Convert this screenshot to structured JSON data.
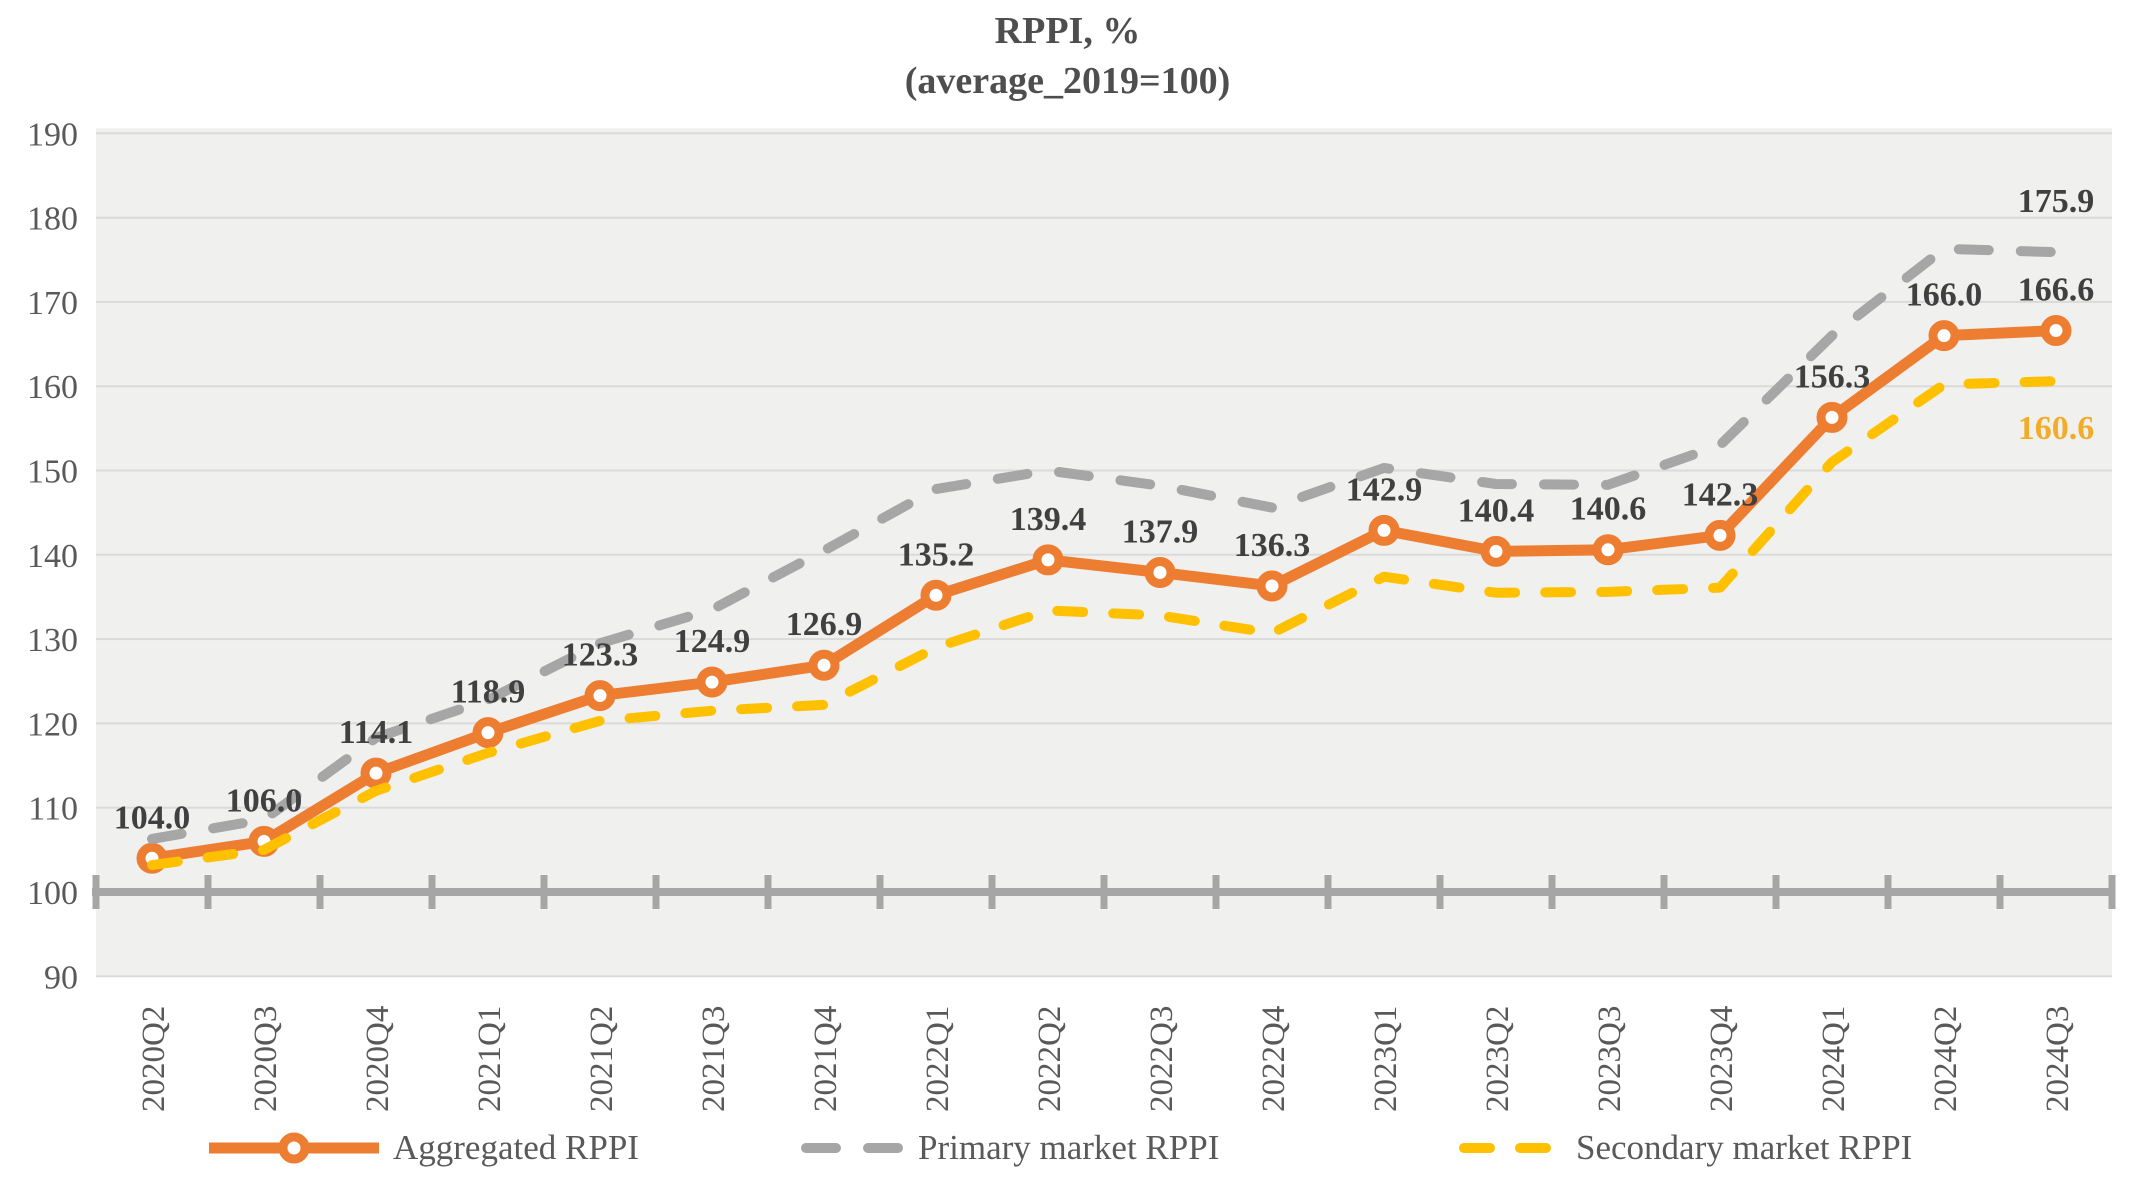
{
  "title": {
    "line1": "RPPI, %",
    "line2": "(average_2019=100)"
  },
  "chart_data": {
    "type": "line",
    "categories": [
      "2020Q2",
      "2020Q3",
      "2020Q4",
      "2021Q1",
      "2021Q2",
      "2021Q3",
      "2021Q4",
      "2022Q1",
      "2022Q2",
      "2022Q3",
      "2022Q4",
      "2023Q1",
      "2023Q2",
      "2023Q3",
      "2023Q4",
      "2024Q1",
      "2024Q2",
      "2024Q3"
    ],
    "series": [
      {
        "name": "Aggregated RPPI",
        "color": "#ED7D31",
        "style": "solid",
        "marker": "circle",
        "label_points": "all",
        "label_color": "#404040",
        "values": [
          104.0,
          106.0,
          114.1,
          118.9,
          123.3,
          124.9,
          126.9,
          135.2,
          139.4,
          137.9,
          136.3,
          142.9,
          140.4,
          140.6,
          142.3,
          156.3,
          166.0,
          166.6
        ]
      },
      {
        "name": "Primary market RPPI",
        "color": "#A6A6A6",
        "style": "dashed",
        "marker": "none",
        "label_points": "last",
        "label_color": "#404040",
        "last_label": "175.9",
        "values": [
          106.3,
          108.6,
          118.3,
          122.8,
          129.5,
          133.5,
          140.5,
          147.8,
          150.0,
          148.2,
          145.6,
          150.3,
          148.4,
          148.3,
          153.0,
          166.0,
          176.3,
          175.9
        ]
      },
      {
        "name": "Secondary market RPPI",
        "color": "#FFC000",
        "style": "dashed",
        "marker": "none",
        "label_points": "last",
        "label_color": "#F2AC29",
        "last_label": "160.6",
        "values": [
          103.2,
          105.0,
          112.0,
          116.5,
          120.3,
          121.5,
          122.2,
          129.0,
          133.4,
          132.8,
          130.7,
          137.4,
          135.5,
          135.6,
          136.1,
          151.0,
          160.2,
          160.6
        ]
      }
    ],
    "ylim": [
      90,
      190
    ],
    "ytick_step": 10,
    "yticks": [
      "90",
      "100",
      "110",
      "120",
      "130",
      "140",
      "150",
      "160",
      "170",
      "180",
      "190"
    ],
    "baseline_value": 100,
    "grid": true,
    "legend_position": "bottom",
    "colors": {
      "plot_bg": "#F0F0EF",
      "grid_color": "#DADADA",
      "axis_color": "#A6A6A6",
      "axis_text": "#595959",
      "label_text": "#404040"
    }
  }
}
